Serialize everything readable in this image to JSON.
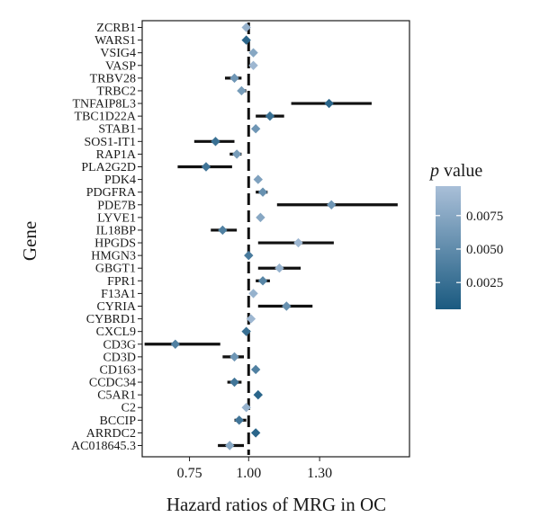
{
  "chart_data": {
    "type": "forest",
    "xlabel": "Hazard ratios of MRG in OC",
    "ylabel": "Gene",
    "xlim": [
      0.55,
      1.68
    ],
    "xticks": [
      0.75,
      1.0,
      1.3
    ],
    "xtick_labels": [
      "0.75",
      "1.00",
      "1.30"
    ],
    "reference_line": 1.0,
    "legend": {
      "title_italic": "p",
      "title_rest": " value",
      "range": [
        0.0005,
        0.0097
      ],
      "ticks": [
        0.0025,
        0.005,
        0.0075
      ],
      "tick_labels": [
        "0.0025",
        "0.0050",
        "0.0075"
      ],
      "color_low": "#1a5a80",
      "color_high": "#a9bfd8"
    },
    "rows": [
      {
        "gene": "ZCRB1",
        "hr": 0.99,
        "lo": 0.99,
        "hi": 0.99,
        "p": 0.0085
      },
      {
        "gene": "WARS1",
        "hr": 0.99,
        "lo": 0.99,
        "hi": 0.99,
        "p": 0.0015
      },
      {
        "gene": "VSIG4",
        "hr": 1.02,
        "lo": 1.02,
        "hi": 1.02,
        "p": 0.0075
      },
      {
        "gene": "VASP",
        "hr": 1.02,
        "lo": 1.02,
        "hi": 1.02,
        "p": 0.009
      },
      {
        "gene": "TRBV28",
        "hr": 0.94,
        "lo": 0.9,
        "hi": 0.97,
        "p": 0.006
      },
      {
        "gene": "TRBC2",
        "hr": 0.97,
        "lo": 0.96,
        "hi": 0.99,
        "p": 0.0065
      },
      {
        "gene": "TNFAIP8L3",
        "hr": 1.34,
        "lo": 1.18,
        "hi": 1.52,
        "p": 0.0015
      },
      {
        "gene": "TBC1D22A",
        "hr": 1.09,
        "lo": 1.03,
        "hi": 1.15,
        "p": 0.0025
      },
      {
        "gene": "STAB1",
        "hr": 1.03,
        "lo": 1.03,
        "hi": 1.03,
        "p": 0.006
      },
      {
        "gene": "SOS1-IT1",
        "hr": 0.86,
        "lo": 0.77,
        "hi": 0.94,
        "p": 0.0025
      },
      {
        "gene": "RAP1A",
        "hr": 0.95,
        "lo": 0.92,
        "hi": 0.97,
        "p": 0.0065
      },
      {
        "gene": "PLA2G2D",
        "hr": 0.82,
        "lo": 0.7,
        "hi": 0.93,
        "p": 0.003
      },
      {
        "gene": "PDK4",
        "hr": 1.04,
        "lo": 1.04,
        "hi": 1.04,
        "p": 0.007
      },
      {
        "gene": "PDGFRA",
        "hr": 1.06,
        "lo": 1.03,
        "hi": 1.08,
        "p": 0.0055
      },
      {
        "gene": "PDE7B",
        "hr": 1.35,
        "lo": 1.12,
        "hi": 1.63,
        "p": 0.006
      },
      {
        "gene": "LYVE1",
        "hr": 1.05,
        "lo": 1.05,
        "hi": 1.05,
        "p": 0.0075
      },
      {
        "gene": "IL18BP",
        "hr": 0.89,
        "lo": 0.84,
        "hi": 0.95,
        "p": 0.004
      },
      {
        "gene": "HPGDS",
        "hr": 1.21,
        "lo": 1.04,
        "hi": 1.36,
        "p": 0.009
      },
      {
        "gene": "HMGN3",
        "hr": 1.0,
        "lo": 1.0,
        "hi": 1.0,
        "p": 0.0035
      },
      {
        "gene": "GBGT1",
        "hr": 1.13,
        "lo": 1.04,
        "hi": 1.22,
        "p": 0.0085
      },
      {
        "gene": "FPR1",
        "hr": 1.06,
        "lo": 1.03,
        "hi": 1.09,
        "p": 0.0045
      },
      {
        "gene": "F13A1",
        "hr": 1.02,
        "lo": 1.02,
        "hi": 1.02,
        "p": 0.0085
      },
      {
        "gene": "CYRIA",
        "hr": 1.16,
        "lo": 1.04,
        "hi": 1.27,
        "p": 0.0055
      },
      {
        "gene": "CYBRD1",
        "hr": 1.01,
        "lo": 1.01,
        "hi": 1.01,
        "p": 0.009
      },
      {
        "gene": "CXCL9",
        "hr": 0.99,
        "lo": 0.99,
        "hi": 0.99,
        "p": 0.0025
      },
      {
        "gene": "CD3G",
        "hr": 0.69,
        "lo": 0.56,
        "hi": 0.88,
        "p": 0.004
      },
      {
        "gene": "CD3D",
        "hr": 0.94,
        "lo": 0.89,
        "hi": 0.98,
        "p": 0.006
      },
      {
        "gene": "CD163",
        "hr": 1.03,
        "lo": 1.03,
        "hi": 1.03,
        "p": 0.004
      },
      {
        "gene": "CCDC34",
        "hr": 0.94,
        "lo": 0.91,
        "hi": 0.97,
        "p": 0.003
      },
      {
        "gene": "C5AR1",
        "hr": 1.04,
        "lo": 1.04,
        "hi": 1.04,
        "p": 0.0015
      },
      {
        "gene": "C2",
        "hr": 0.99,
        "lo": 0.99,
        "hi": 0.99,
        "p": 0.0085
      },
      {
        "gene": "BCCIP",
        "hr": 0.96,
        "lo": 0.94,
        "hi": 0.99,
        "p": 0.003
      },
      {
        "gene": "ARRDC2",
        "hr": 1.03,
        "lo": 1.03,
        "hi": 1.03,
        "p": 0.0015
      },
      {
        "gene": "AC018645.3",
        "hr": 0.92,
        "lo": 0.87,
        "hi": 0.98,
        "p": 0.0075
      }
    ]
  }
}
